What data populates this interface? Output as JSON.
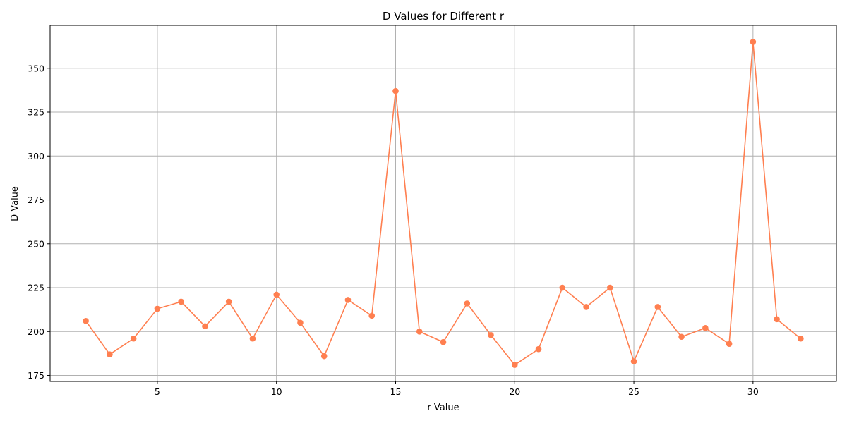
{
  "chart_data": {
    "type": "line",
    "title": "D Values for Different r",
    "xlabel": "r Value",
    "ylabel": "D Value",
    "xlim": [
      0.5,
      33.5
    ],
    "ylim": [
      171.6,
      374.4
    ],
    "xticks": [
      5,
      10,
      15,
      20,
      25,
      30
    ],
    "yticks": [
      175,
      200,
      225,
      250,
      275,
      300,
      325,
      350
    ],
    "grid": true,
    "color": "#ff7f50",
    "marker": "circle",
    "series": [
      {
        "x": [
          2,
          3,
          4,
          5,
          6,
          7,
          8,
          9,
          10,
          11,
          12,
          13,
          14,
          15,
          16,
          17,
          18,
          19,
          20,
          21,
          22,
          23,
          24,
          25,
          26,
          27,
          28,
          29,
          30,
          31,
          32
        ],
        "y": [
          206,
          187,
          196,
          213,
          217,
          203,
          217,
          196,
          221,
          205,
          186,
          218,
          209,
          337,
          200,
          194,
          216,
          198,
          181,
          190,
          225,
          214,
          225,
          183,
          214,
          197,
          202,
          193,
          365,
          207,
          196
        ]
      }
    ]
  }
}
